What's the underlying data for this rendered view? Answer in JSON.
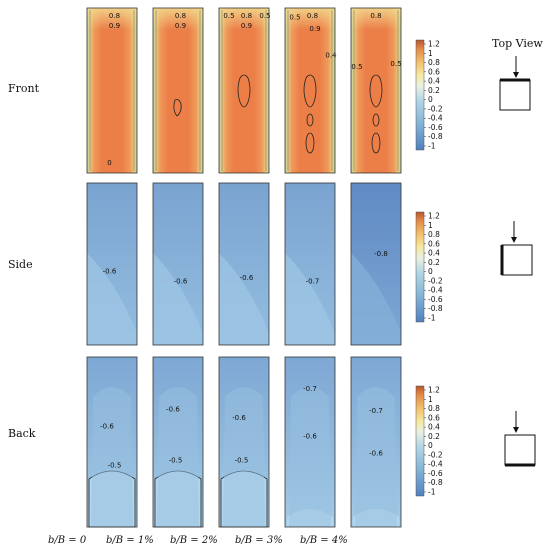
{
  "figure": {
    "row_labels": [
      "Front",
      "Side",
      "Back"
    ],
    "column_labels": [
      "b/B = 0",
      "b/B = 1%",
      "b/B = 2%",
      "b/B = 3%",
      "b/B = 4%"
    ],
    "top_view_label": "Top View"
  },
  "chart_data": {
    "type": "heatmap",
    "colorbar": {
      "ticks": [
        "1.2",
        "1",
        "0.8",
        "0.6",
        "0.4",
        "0.2",
        "0",
        "-0.2",
        "-0.4",
        "-0.6",
        "-0.8",
        "-1"
      ],
      "range": [
        -1,
        1.2
      ],
      "colors": [
        "#b8562e",
        "#e48a48",
        "#f3c06c",
        "#f6e9a0",
        "#eaf1e2",
        "#b2d6e6",
        "#86b6d8",
        "#4f80bf"
      ]
    },
    "panels": [
      [
        {
          "contours": [
            "0.8",
            "0.9",
            "0"
          ]
        },
        {
          "contours": [
            "0.8",
            "0.9"
          ]
        },
        {
          "contours": [
            "0.5",
            "0.8",
            "0.9",
            "0.5"
          ]
        },
        {
          "contours": [
            "0.5",
            "0.8",
            "0.9",
            "0.4"
          ]
        },
        {
          "contours": [
            "0.5",
            "0.8",
            "0.5"
          ]
        }
      ],
      [
        {
          "contours": [
            "-0.6"
          ]
        },
        {
          "contours": [
            "-0.6"
          ]
        },
        {
          "contours": [
            "-0.6"
          ]
        },
        {
          "contours": [
            "-0.7"
          ]
        },
        {
          "contours": [
            "-0.8"
          ]
        }
      ],
      [
        {
          "contours": [
            "-0.6",
            "-0.5"
          ]
        },
        {
          "contours": [
            "-0.6",
            "-0.5"
          ]
        },
        {
          "contours": [
            "-0.6",
            "-0.5"
          ]
        },
        {
          "contours": [
            "-0.7",
            "-0.6"
          ]
        },
        {
          "contours": [
            "-0.7",
            "-0.6"
          ]
        }
      ]
    ]
  }
}
